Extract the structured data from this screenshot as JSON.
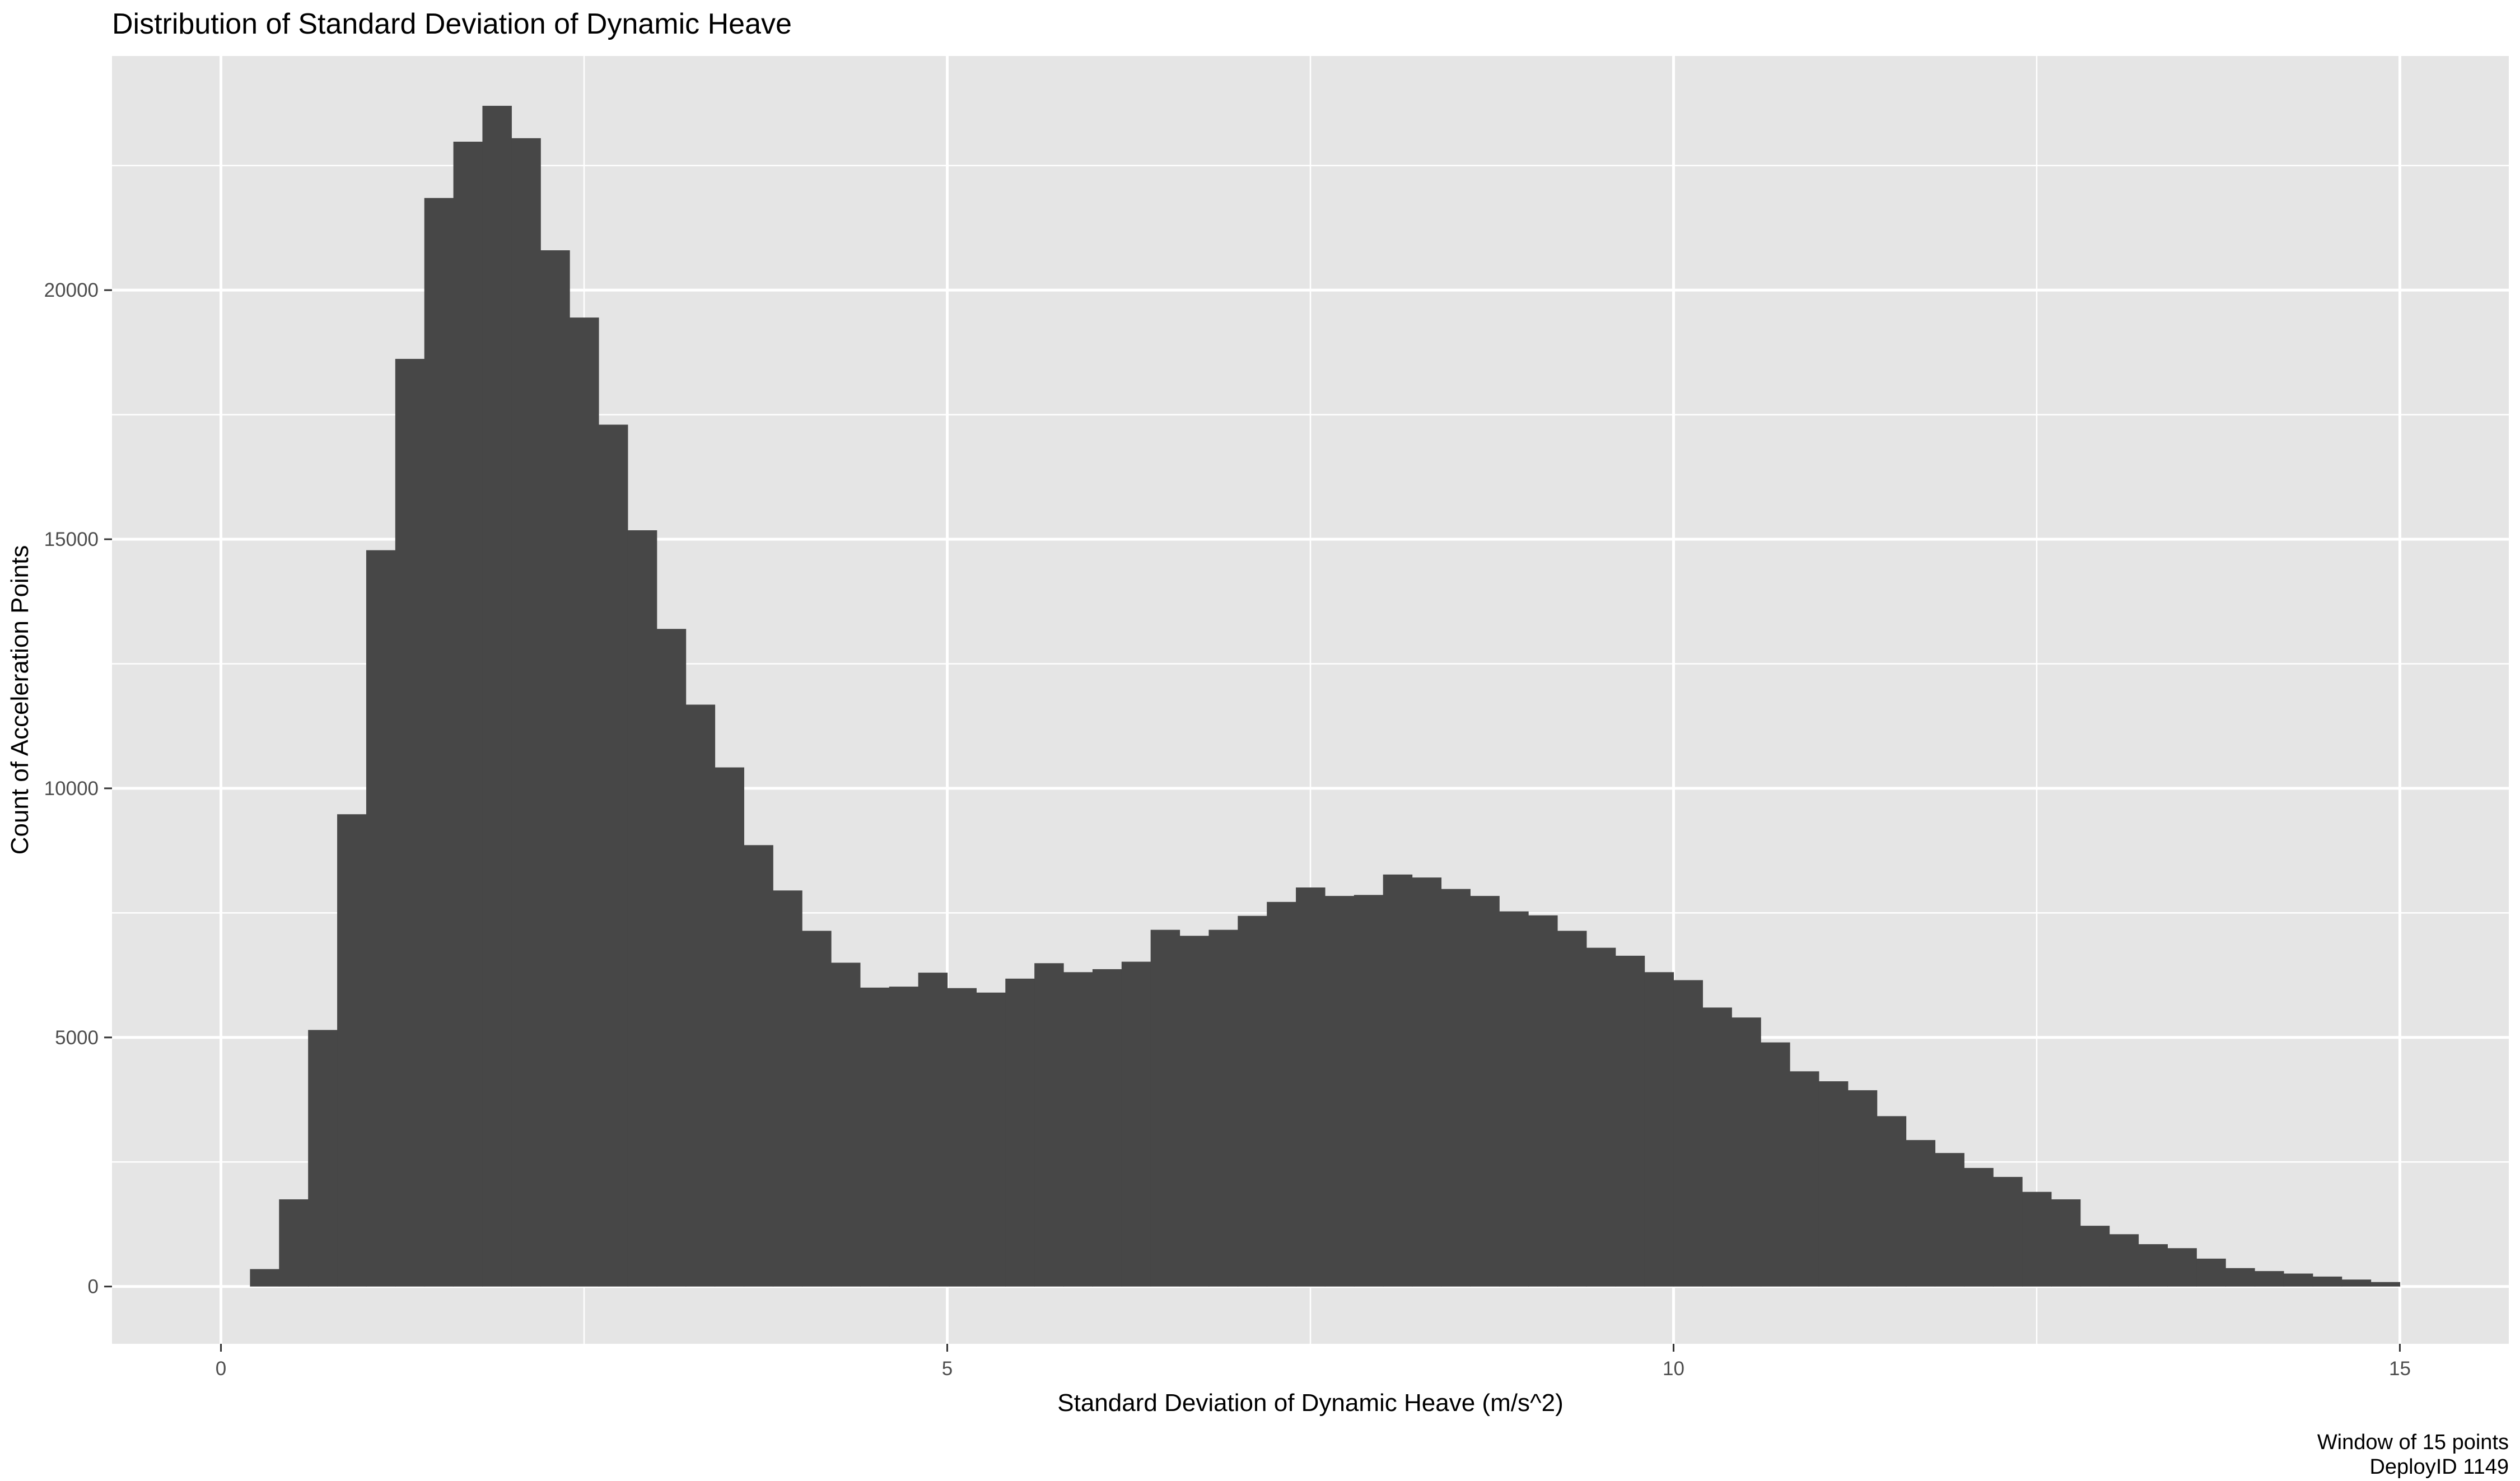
{
  "chart_data": {
    "type": "bar",
    "title": "Distribution of Standard Deviation of Dynamic Heave",
    "xlabel": "Standard Deviation of Dynamic Heave (m/s^2)",
    "ylabel": "Count of Acceleration Points",
    "caption": [
      "Window of 15 points",
      "DeployID 1149"
    ],
    "xlim": [
      -0.75,
      15.75
    ],
    "ylim": [
      -1150,
      24700
    ],
    "x_ticks": [
      0,
      5,
      10,
      15
    ],
    "x_tick_labels": [
      "0",
      "5",
      "10",
      "15"
    ],
    "y_ticks": [
      0,
      5000,
      10000,
      15000,
      20000
    ],
    "y_tick_labels": [
      "0",
      "5000",
      "10000",
      "15000",
      "20000"
    ],
    "grid": true,
    "bin_width": 0.2,
    "bin_start": 0.2,
    "values": [
      350,
      1750,
      5150,
      9480,
      14780,
      18620,
      21850,
      22980,
      23700,
      23050,
      20800,
      19450,
      17300,
      15180,
      13200,
      11680,
      10420,
      8860,
      7950,
      7140,
      6500,
      6000,
      6020,
      6300,
      5990,
      5900,
      6180,
      6490,
      6310,
      6370,
      6520,
      7160,
      7040,
      7160,
      7440,
      7720,
      8010,
      7840,
      7860,
      8270,
      8210,
      7980,
      7840,
      7530,
      7450,
      7140,
      6800,
      6640,
      6310,
      6150,
      5600,
      5400,
      4900,
      4320,
      4120,
      3940,
      3420,
      2940,
      2680,
      2380,
      2200,
      1900,
      1750,
      1220,
      1050,
      850,
      770,
      560,
      370,
      310,
      260,
      200,
      140,
      90
    ],
    "colors": {
      "panel": "#E5E5E5",
      "grid": "#FFFFFF",
      "bar": "#474747",
      "tick": "#333333"
    }
  }
}
